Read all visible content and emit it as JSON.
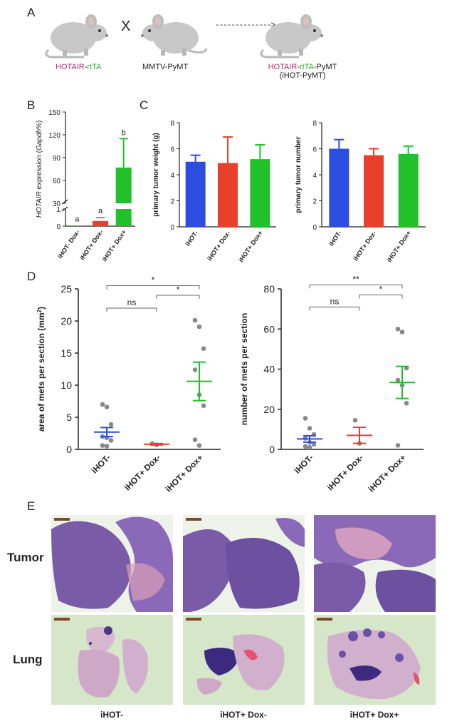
{
  "panels": {
    "A": "A",
    "B": "B",
    "C": "C",
    "D": "D",
    "E": "E"
  },
  "panel_a": {
    "cross_symbol": "X",
    "parent1": {
      "part1": "HOTAIR",
      "sep": "-",
      "part2": "rtTA"
    },
    "parent2": "MMTV-PyMT",
    "offspring": {
      "part1": "HOTAIR",
      "sep": "-",
      "part2": "rtTA",
      "part3": "-PyMT",
      "line2": "(iHOT-PyMT)"
    },
    "arrow_text": "-------------->",
    "colors": {
      "hotair": "#b0306a",
      "rtta": "#3aa83a",
      "mouse": "#c8c8c8"
    }
  },
  "chart_data": [
    {
      "id": "B",
      "type": "bar",
      "ylabel_italic": "HOTAIR",
      "ylabel_rest": " expression (",
      "ylabel_gene": "Gapdh",
      "ylabel_end": "%)",
      "yticks_upper": [
        "150",
        "120",
        "90",
        "60",
        "30"
      ],
      "yticks_lower": [
        "1",
        "0"
      ],
      "categories": [
        "iHOT- Dox-",
        "iHOT+ Dox-",
        "iHOT+ Dox+"
      ],
      "values": [
        0.02,
        0.3,
        77
      ],
      "error": [
        0,
        0.2,
        38
      ],
      "letters": [
        "a",
        "a",
        "b"
      ],
      "colors": [
        "#2b4de0",
        "#e8402a",
        "#22c02a"
      ],
      "ylim": [
        0,
        150
      ],
      "axis_break": true
    },
    {
      "id": "C1",
      "type": "bar",
      "ylabel": "primary tumor weight  (g)",
      "categories": [
        "iHOT-",
        "iHOT+ Dox-",
        "iHOT+ Dox+"
      ],
      "values": [
        5.0,
        4.9,
        5.2
      ],
      "error": [
        0.5,
        2.0,
        1.1
      ],
      "yticks": [
        "0",
        "2",
        "4",
        "6",
        "8"
      ],
      "ylim": [
        0,
        8
      ],
      "colors": [
        "#2b4de0",
        "#e8402a",
        "#22c02a"
      ]
    },
    {
      "id": "C2",
      "type": "bar",
      "ylabel": "primary tumor number",
      "categories": [
        "iHOT-",
        "iHOT+ Dox-",
        "iHOT+ Dox+"
      ],
      "values": [
        6.0,
        5.5,
        5.6
      ],
      "error": [
        0.7,
        0.5,
        0.6
      ],
      "yticks": [
        "0",
        "2",
        "4",
        "6",
        "8"
      ],
      "ylim": [
        0,
        8
      ],
      "colors": [
        "#2b4de0",
        "#e8402a",
        "#22c02a"
      ]
    },
    {
      "id": "D1",
      "type": "scatter",
      "ylabel": "area of mets per section (mm",
      "ylabel_sup": "2",
      "ylabel_end": ")",
      "categories": [
        "iHOT-",
        "iHOT+ Dox-",
        "iHOT+ Dox+"
      ],
      "yticks": [
        "0",
        "5",
        "10",
        "15",
        "20",
        "25"
      ],
      "ylim": [
        0,
        25
      ],
      "points": [
        [
          7.0,
          6.6,
          3.9,
          2.0,
          1.8,
          1.4,
          0.6,
          0.5
        ],
        [
          0.9,
          0.7
        ],
        [
          20.1,
          19.1,
          15.7,
          12.4,
          8.5,
          6.8,
          1.5,
          0.6
        ]
      ],
      "means": [
        2.7,
        0.8,
        10.6
      ],
      "sem": [
        0.7,
        0.1,
        3.0
      ],
      "colors": [
        "#2b4de0",
        "#e8402a",
        "#22c02a"
      ],
      "comparisons": [
        {
          "from": 0,
          "to": 1,
          "label": "ns",
          "level": 22
        },
        {
          "from": 0,
          "to": 2,
          "label": "*",
          "level": 25.5
        },
        {
          "from": 1,
          "to": 2,
          "label": "*",
          "level": 24
        }
      ]
    },
    {
      "id": "D2",
      "type": "scatter",
      "ylabel": "number of mets per section",
      "categories": [
        "iHOT-",
        "iHOT+ Dox-",
        "iHOT+ Dox+"
      ],
      "yticks": [
        "0",
        "20",
        "40",
        "60",
        "80"
      ],
      "ylim": [
        0,
        80
      ],
      "points": [
        [
          15.5,
          10.5,
          7.5,
          5.5,
          3.5,
          2.5,
          1.5,
          1.0
        ],
        [
          14.5,
          3.0
        ],
        [
          60.0,
          58.5,
          40.5,
          34.5,
          32.0,
          23.0,
          2.0
        ]
      ],
      "means": [
        5.2,
        7.0,
        33.4
      ],
      "sem": [
        1.6,
        4.0,
        8.0
      ],
      "colors": [
        "#2b4de0",
        "#e8402a",
        "#22c02a"
      ],
      "comparisons": [
        {
          "from": 0,
          "to": 1,
          "label": "ns",
          "level": 71
        },
        {
          "from": 0,
          "to": 2,
          "label": "**",
          "level": 82
        },
        {
          "from": 1,
          "to": 2,
          "label": "*",
          "level": 77
        }
      ]
    }
  ],
  "panel_e": {
    "rows": [
      "Tumor",
      "Lung"
    ],
    "columns": [
      "iHOT-",
      "iHOT+ Dox-",
      "iHOT+ Dox+"
    ],
    "colors": {
      "tissue": "#7a5ba8",
      "tissue_dark": "#4d3484",
      "background": "#eef3ea",
      "pink": "#d9a0b8",
      "lung_bg": "#d6e6c8"
    }
  }
}
